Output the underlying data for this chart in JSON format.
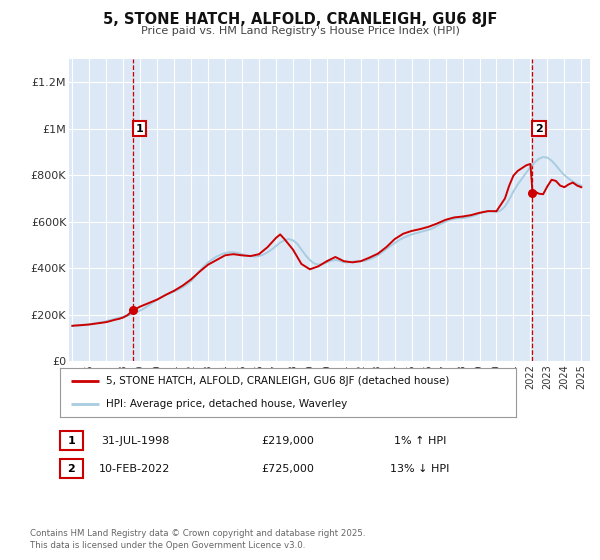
{
  "title": "5, STONE HATCH, ALFOLD, CRANLEIGH, GU6 8JF",
  "subtitle": "Price paid vs. HM Land Registry's House Price Index (HPI)",
  "plot_bg_color": "#dce8f5",
  "ylim": [
    0,
    1300000
  ],
  "xlim_start": 1994.8,
  "xlim_end": 2025.5,
  "yticks": [
    0,
    200000,
    400000,
    600000,
    800000,
    1000000,
    1200000
  ],
  "ytick_labels": [
    "£0",
    "£200K",
    "£400K",
    "£600K",
    "£800K",
    "£1M",
    "£1.2M"
  ],
  "xticks": [
    1995,
    1996,
    1997,
    1998,
    1999,
    2000,
    2001,
    2002,
    2003,
    2004,
    2005,
    2006,
    2007,
    2008,
    2009,
    2010,
    2011,
    2012,
    2013,
    2014,
    2015,
    2016,
    2017,
    2018,
    2019,
    2020,
    2021,
    2022,
    2023,
    2024,
    2025
  ],
  "hpi_color": "#a8cce0",
  "price_color": "#cc0000",
  "marker1_x": 1998.58,
  "marker1_y": 219000,
  "marker2_x": 2022.12,
  "marker2_y": 725000,
  "legend_label1": "5, STONE HATCH, ALFOLD, CRANLEIGH, GU6 8JF (detached house)",
  "legend_label2": "HPI: Average price, detached house, Waverley",
  "note1_date": "31-JUL-1998",
  "note1_price": "£219,000",
  "note1_hpi": "1% ↑ HPI",
  "note2_date": "10-FEB-2022",
  "note2_price": "£725,000",
  "note2_hpi": "13% ↓ HPI",
  "footer": "Contains HM Land Registry data © Crown copyright and database right 2025.\nThis data is licensed under the Open Government Licence v3.0.",
  "hpi_data_x": [
    1995.0,
    1995.25,
    1995.5,
    1995.75,
    1996.0,
    1996.25,
    1996.5,
    1996.75,
    1997.0,
    1997.25,
    1997.5,
    1997.75,
    1998.0,
    1998.25,
    1998.5,
    1998.75,
    1999.0,
    1999.25,
    1999.5,
    1999.75,
    2000.0,
    2000.25,
    2000.5,
    2000.75,
    2001.0,
    2001.25,
    2001.5,
    2001.75,
    2002.0,
    2002.25,
    2002.5,
    2002.75,
    2003.0,
    2003.25,
    2003.5,
    2003.75,
    2004.0,
    2004.25,
    2004.5,
    2004.75,
    2005.0,
    2005.25,
    2005.5,
    2005.75,
    2006.0,
    2006.25,
    2006.5,
    2006.75,
    2007.0,
    2007.25,
    2007.5,
    2007.75,
    2008.0,
    2008.25,
    2008.5,
    2008.75,
    2009.0,
    2009.25,
    2009.5,
    2009.75,
    2010.0,
    2010.25,
    2010.5,
    2010.75,
    2011.0,
    2011.25,
    2011.5,
    2011.75,
    2012.0,
    2012.25,
    2012.5,
    2012.75,
    2013.0,
    2013.25,
    2013.5,
    2013.75,
    2014.0,
    2014.25,
    2014.5,
    2014.75,
    2015.0,
    2015.25,
    2015.5,
    2015.75,
    2016.0,
    2016.25,
    2016.5,
    2016.75,
    2017.0,
    2017.25,
    2017.5,
    2017.75,
    2018.0,
    2018.25,
    2018.5,
    2018.75,
    2019.0,
    2019.25,
    2019.5,
    2019.75,
    2020.0,
    2020.25,
    2020.5,
    2020.75,
    2021.0,
    2021.25,
    2021.5,
    2021.75,
    2022.0,
    2022.25,
    2022.5,
    2022.75,
    2023.0,
    2023.25,
    2023.5,
    2023.75,
    2024.0,
    2024.25,
    2024.5,
    2024.75,
    2025.0
  ],
  "hpi_data_y": [
    152000,
    153000,
    154000,
    155000,
    158000,
    162000,
    165000,
    168000,
    172000,
    177000,
    182000,
    187000,
    191000,
    196000,
    202000,
    210000,
    218000,
    228000,
    240000,
    253000,
    265000,
    275000,
    285000,
    293000,
    300000,
    308000,
    318000,
    330000,
    345000,
    365000,
    388000,
    408000,
    425000,
    438000,
    450000,
    458000,
    465000,
    468000,
    468000,
    465000,
    460000,
    455000,
    452000,
    450000,
    452000,
    458000,
    468000,
    480000,
    495000,
    510000,
    520000,
    525000,
    520000,
    505000,
    480000,
    455000,
    435000,
    420000,
    415000,
    418000,
    425000,
    432000,
    435000,
    432000,
    425000,
    425000,
    428000,
    430000,
    430000,
    432000,
    438000,
    445000,
    455000,
    468000,
    482000,
    495000,
    508000,
    520000,
    530000,
    538000,
    545000,
    550000,
    555000,
    560000,
    565000,
    572000,
    582000,
    592000,
    600000,
    608000,
    612000,
    615000,
    615000,
    618000,
    622000,
    628000,
    635000,
    642000,
    645000,
    645000,
    642000,
    648000,
    665000,
    695000,
    730000,
    760000,
    785000,
    810000,
    835000,
    855000,
    870000,
    878000,
    875000,
    862000,
    842000,
    820000,
    800000,
    785000,
    772000,
    762000,
    755000
  ],
  "price_data_x": [
    1995.0,
    1995.1,
    1995.2,
    1995.5,
    1996.0,
    1996.5,
    1997.0,
    1997.5,
    1997.75,
    1998.0,
    1998.25,
    1998.58,
    1999.0,
    1999.5,
    2000.0,
    2000.5,
    2001.0,
    2001.5,
    2002.0,
    2002.5,
    2003.0,
    2003.5,
    2004.0,
    2004.25,
    2004.5,
    2005.0,
    2005.5,
    2006.0,
    2006.5,
    2007.0,
    2007.25,
    2007.5,
    2008.0,
    2008.5,
    2009.0,
    2009.5,
    2010.0,
    2010.5,
    2011.0,
    2011.5,
    2012.0,
    2012.5,
    2013.0,
    2013.5,
    2014.0,
    2014.5,
    2015.0,
    2015.5,
    2016.0,
    2016.5,
    2017.0,
    2017.5,
    2018.0,
    2018.5,
    2019.0,
    2019.5,
    2020.0,
    2020.5,
    2020.75,
    2021.0,
    2021.25,
    2021.5,
    2021.75,
    2022.0,
    2022.12,
    2022.25,
    2022.5,
    2022.75,
    2023.0,
    2023.25,
    2023.5,
    2023.75,
    2024.0,
    2024.25,
    2024.5,
    2024.75,
    2025.0
  ],
  "price_data_y": [
    152000,
    153000,
    153500,
    155000,
    158000,
    163000,
    168000,
    178000,
    182000,
    188000,
    198000,
    219000,
    235000,
    250000,
    265000,
    285000,
    303000,
    325000,
    352000,
    385000,
    415000,
    435000,
    455000,
    458000,
    460000,
    455000,
    452000,
    460000,
    490000,
    530000,
    545000,
    525000,
    480000,
    418000,
    395000,
    408000,
    430000,
    448000,
    430000,
    425000,
    430000,
    445000,
    462000,
    490000,
    525000,
    548000,
    560000,
    568000,
    578000,
    592000,
    608000,
    618000,
    622000,
    628000,
    638000,
    645000,
    645000,
    700000,
    755000,
    798000,
    818000,
    830000,
    842000,
    848000,
    725000,
    730000,
    720000,
    718000,
    752000,
    780000,
    775000,
    755000,
    748000,
    760000,
    768000,
    755000,
    748000
  ]
}
